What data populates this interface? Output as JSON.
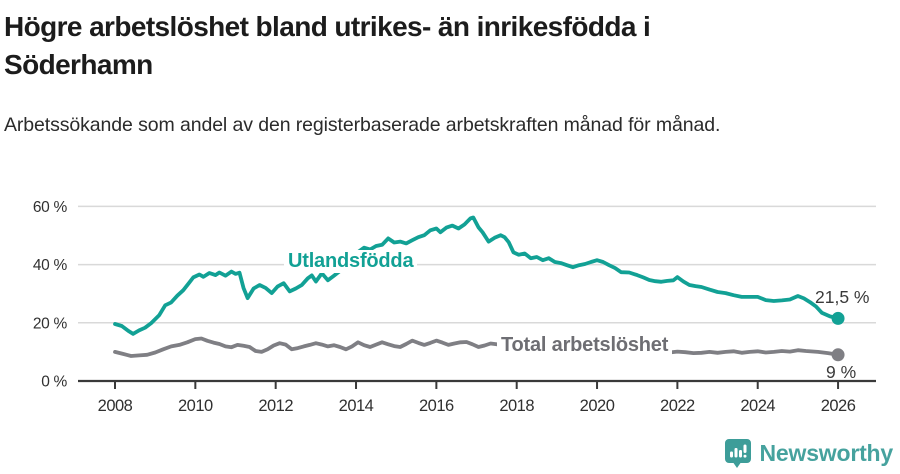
{
  "header": {
    "title": "Högre arbetslöshet bland utrikes- än inrikesfödda i Söderhamn",
    "subtitle": "Arbetssökande som andel av den registerbaserade arbetskraften månad för månad."
  },
  "chart_data": {
    "type": "line",
    "title": "Högre arbetslöshet bland utrikes- än inrikesfödda i Söderhamn",
    "subtitle": "Arbetssökande som andel av den registerbaserade arbetskraften månad för månad.",
    "unit": "%",
    "xlabel": "",
    "ylabel": "",
    "xlim": [
      2007.1,
      2027.1
    ],
    "ylim": [
      0,
      62
    ],
    "grid": "horizontal",
    "grid_color": "#d9d9d9",
    "axis_color": "#3a3a3a",
    "legend": "inline-labels",
    "y_ticks": [
      {
        "v": 0,
        "label": "0 %"
      },
      {
        "v": 20,
        "label": "20 %"
      },
      {
        "v": 40,
        "label": "40 %"
      },
      {
        "v": 60,
        "label": "60 %"
      }
    ],
    "x_ticks": [
      {
        "v": 2008,
        "label": "2008"
      },
      {
        "v": 2010,
        "label": "2010"
      },
      {
        "v": 2012,
        "label": "2012"
      },
      {
        "v": 2014,
        "label": "2014"
      },
      {
        "v": 2016,
        "label": "2016"
      },
      {
        "v": 2018,
        "label": "2018"
      },
      {
        "v": 2020,
        "label": "2020"
      },
      {
        "v": 2022,
        "label": "2022"
      },
      {
        "v": 2024,
        "label": "2024"
      },
      {
        "v": 2026,
        "label": "2026"
      }
    ],
    "series": [
      {
        "name": "Utlandsfödda",
        "color": "#12a195",
        "end_label": "21,5 %",
        "end_value": 21.5,
        "points": [
          [
            2008.0,
            19.6
          ],
          [
            2008.17,
            18.9
          ],
          [
            2008.33,
            17.2
          ],
          [
            2008.45,
            16.2
          ],
          [
            2008.6,
            17.4
          ],
          [
            2008.75,
            18.3
          ],
          [
            2008.9,
            19.9
          ],
          [
            2009.1,
            22.6
          ],
          [
            2009.25,
            26.0
          ],
          [
            2009.4,
            27.0
          ],
          [
            2009.55,
            29.3
          ],
          [
            2009.7,
            31.2
          ],
          [
            2009.85,
            33.8
          ],
          [
            2009.95,
            35.6
          ],
          [
            2010.1,
            36.6
          ],
          [
            2010.2,
            35.8
          ],
          [
            2010.35,
            37.1
          ],
          [
            2010.5,
            36.4
          ],
          [
            2010.6,
            37.3
          ],
          [
            2010.75,
            36.2
          ],
          [
            2010.9,
            37.6
          ],
          [
            2011.0,
            36.8
          ],
          [
            2011.1,
            37.2
          ],
          [
            2011.2,
            32.0
          ],
          [
            2011.3,
            28.5
          ],
          [
            2011.45,
            31.8
          ],
          [
            2011.6,
            33.0
          ],
          [
            2011.75,
            32.0
          ],
          [
            2011.9,
            30.2
          ],
          [
            2012.05,
            32.5
          ],
          [
            2012.2,
            33.6
          ],
          [
            2012.35,
            30.8
          ],
          [
            2012.5,
            31.8
          ],
          [
            2012.65,
            33.0
          ],
          [
            2012.8,
            35.3
          ],
          [
            2012.9,
            36.3
          ],
          [
            2013.0,
            34.2
          ],
          [
            2013.15,
            37.0
          ],
          [
            2013.3,
            34.6
          ],
          [
            2013.45,
            36.2
          ],
          [
            2013.6,
            37.8
          ],
          [
            2013.75,
            40.0
          ],
          [
            2013.9,
            42.5
          ],
          [
            2014.05,
            44.3
          ],
          [
            2014.2,
            45.8
          ],
          [
            2014.35,
            45.2
          ],
          [
            2014.5,
            46.4
          ],
          [
            2014.65,
            46.8
          ],
          [
            2014.8,
            49.0
          ],
          [
            2014.95,
            47.6
          ],
          [
            2015.1,
            47.9
          ],
          [
            2015.25,
            47.3
          ],
          [
            2015.4,
            48.4
          ],
          [
            2015.55,
            49.4
          ],
          [
            2015.7,
            50.1
          ],
          [
            2015.85,
            51.8
          ],
          [
            2016.0,
            52.4
          ],
          [
            2016.1,
            51.1
          ],
          [
            2016.25,
            52.7
          ],
          [
            2016.4,
            53.4
          ],
          [
            2016.55,
            52.4
          ],
          [
            2016.7,
            53.8
          ],
          [
            2016.85,
            55.9
          ],
          [
            2016.92,
            56.2
          ],
          [
            2017.05,
            52.8
          ],
          [
            2017.15,
            51.1
          ],
          [
            2017.3,
            47.9
          ],
          [
            2017.45,
            49.2
          ],
          [
            2017.6,
            50.1
          ],
          [
            2017.7,
            49.4
          ],
          [
            2017.8,
            47.7
          ],
          [
            2017.92,
            44.2
          ],
          [
            2018.05,
            43.4
          ],
          [
            2018.2,
            43.8
          ],
          [
            2018.35,
            42.2
          ],
          [
            2018.5,
            42.6
          ],
          [
            2018.65,
            41.5
          ],
          [
            2018.8,
            42.2
          ],
          [
            2018.95,
            40.9
          ],
          [
            2019.1,
            40.5
          ],
          [
            2019.25,
            39.8
          ],
          [
            2019.4,
            39.1
          ],
          [
            2019.55,
            39.8
          ],
          [
            2019.7,
            40.2
          ],
          [
            2019.85,
            40.9
          ],
          [
            2020.0,
            41.5
          ],
          [
            2020.15,
            40.9
          ],
          [
            2020.3,
            39.8
          ],
          [
            2020.45,
            38.8
          ],
          [
            2020.6,
            37.4
          ],
          [
            2020.8,
            37.3
          ],
          [
            2021.0,
            36.4
          ],
          [
            2021.15,
            35.6
          ],
          [
            2021.3,
            34.7
          ],
          [
            2021.45,
            34.3
          ],
          [
            2021.6,
            34.1
          ],
          [
            2021.75,
            34.4
          ],
          [
            2021.9,
            34.6
          ],
          [
            2022.0,
            35.7
          ],
          [
            2022.15,
            34.2
          ],
          [
            2022.3,
            33.0
          ],
          [
            2022.45,
            32.6
          ],
          [
            2022.6,
            32.3
          ],
          [
            2022.8,
            31.4
          ],
          [
            2023.0,
            30.6
          ],
          [
            2023.2,
            30.2
          ],
          [
            2023.4,
            29.5
          ],
          [
            2023.6,
            28.9
          ],
          [
            2023.8,
            28.9
          ],
          [
            2024.0,
            28.9
          ],
          [
            2024.2,
            27.8
          ],
          [
            2024.4,
            27.5
          ],
          [
            2024.6,
            27.7
          ],
          [
            2024.8,
            28.0
          ],
          [
            2025.0,
            29.2
          ],
          [
            2025.15,
            28.4
          ],
          [
            2025.3,
            27.1
          ],
          [
            2025.45,
            25.6
          ],
          [
            2025.6,
            23.4
          ],
          [
            2025.8,
            22.2
          ],
          [
            2026.0,
            21.5
          ]
        ]
      },
      {
        "name": "Total arbetslöshet",
        "color": "#7f7f84",
        "end_label": "9 %",
        "end_value": 9,
        "points": [
          [
            2008.0,
            10.0
          ],
          [
            2008.2,
            9.3
          ],
          [
            2008.4,
            8.6
          ],
          [
            2008.6,
            8.8
          ],
          [
            2008.8,
            9.0
          ],
          [
            2009.0,
            9.8
          ],
          [
            2009.2,
            10.9
          ],
          [
            2009.4,
            11.9
          ],
          [
            2009.6,
            12.4
          ],
          [
            2009.8,
            13.3
          ],
          [
            2010.0,
            14.4
          ],
          [
            2010.15,
            14.6
          ],
          [
            2010.3,
            13.8
          ],
          [
            2010.45,
            13.2
          ],
          [
            2010.6,
            12.7
          ],
          [
            2010.75,
            11.9
          ],
          [
            2010.9,
            11.6
          ],
          [
            2011.05,
            12.4
          ],
          [
            2011.2,
            12.1
          ],
          [
            2011.35,
            11.7
          ],
          [
            2011.5,
            10.3
          ],
          [
            2011.65,
            10.0
          ],
          [
            2011.8,
            10.9
          ],
          [
            2011.95,
            12.2
          ],
          [
            2012.1,
            13.0
          ],
          [
            2012.25,
            12.5
          ],
          [
            2012.4,
            10.9
          ],
          [
            2012.55,
            11.3
          ],
          [
            2012.7,
            11.9
          ],
          [
            2012.85,
            12.4
          ],
          [
            2013.0,
            13.0
          ],
          [
            2013.15,
            12.5
          ],
          [
            2013.3,
            11.9
          ],
          [
            2013.45,
            12.3
          ],
          [
            2013.6,
            11.7
          ],
          [
            2013.75,
            10.9
          ],
          [
            2013.9,
            11.9
          ],
          [
            2014.05,
            13.3
          ],
          [
            2014.2,
            12.3
          ],
          [
            2014.35,
            11.7
          ],
          [
            2014.5,
            12.5
          ],
          [
            2014.65,
            13.3
          ],
          [
            2014.8,
            12.6
          ],
          [
            2014.95,
            12.0
          ],
          [
            2015.1,
            11.7
          ],
          [
            2015.25,
            12.7
          ],
          [
            2015.4,
            13.9
          ],
          [
            2015.55,
            13.1
          ],
          [
            2015.7,
            12.4
          ],
          [
            2015.85,
            13.1
          ],
          [
            2016.0,
            13.9
          ],
          [
            2016.15,
            13.2
          ],
          [
            2016.3,
            12.4
          ],
          [
            2016.45,
            12.9
          ],
          [
            2016.6,
            13.3
          ],
          [
            2016.75,
            13.4
          ],
          [
            2016.9,
            12.6
          ],
          [
            2017.05,
            11.7
          ],
          [
            2017.2,
            12.2
          ],
          [
            2017.35,
            12.9
          ],
          [
            2017.5,
            12.6
          ],
          [
            2017.65,
            12.2
          ],
          [
            2017.8,
            11.8
          ],
          [
            2017.95,
            12.1
          ],
          [
            2018.1,
            12.5
          ],
          [
            2018.25,
            12.0
          ],
          [
            2018.4,
            11.5
          ],
          [
            2018.55,
            11.8
          ],
          [
            2018.7,
            12.1
          ],
          [
            2018.85,
            11.7
          ],
          [
            2019.0,
            11.3
          ],
          [
            2019.2,
            10.9
          ],
          [
            2019.4,
            10.5
          ],
          [
            2019.6,
            10.9
          ],
          [
            2019.8,
            11.2
          ],
          [
            2020.0,
            11.1
          ],
          [
            2020.2,
            11.6
          ],
          [
            2020.4,
            11.3
          ],
          [
            2020.6,
            10.9
          ],
          [
            2020.8,
            10.5
          ],
          [
            2021.0,
            10.3
          ],
          [
            2021.2,
            10.6
          ],
          [
            2021.4,
            10.0
          ],
          [
            2021.6,
            9.6
          ],
          [
            2021.8,
            9.8
          ],
          [
            2022.0,
            10.1
          ],
          [
            2022.2,
            9.9
          ],
          [
            2022.4,
            9.6
          ],
          [
            2022.6,
            9.7
          ],
          [
            2022.8,
            10.0
          ],
          [
            2023.0,
            9.7
          ],
          [
            2023.2,
            10.0
          ],
          [
            2023.4,
            10.2
          ],
          [
            2023.6,
            9.7
          ],
          [
            2023.8,
            10.0
          ],
          [
            2024.0,
            10.2
          ],
          [
            2024.2,
            9.8
          ],
          [
            2024.4,
            10.0
          ],
          [
            2024.6,
            10.3
          ],
          [
            2024.8,
            10.1
          ],
          [
            2025.0,
            10.6
          ],
          [
            2025.2,
            10.3
          ],
          [
            2025.5,
            10.0
          ],
          [
            2025.75,
            9.6
          ],
          [
            2026.0,
            9.0
          ]
        ]
      }
    ]
  },
  "branding": {
    "logo_text": "Newsworthy",
    "logo_icon": "bar-chart-speech-bubble-icon",
    "color": "#46a29e"
  }
}
